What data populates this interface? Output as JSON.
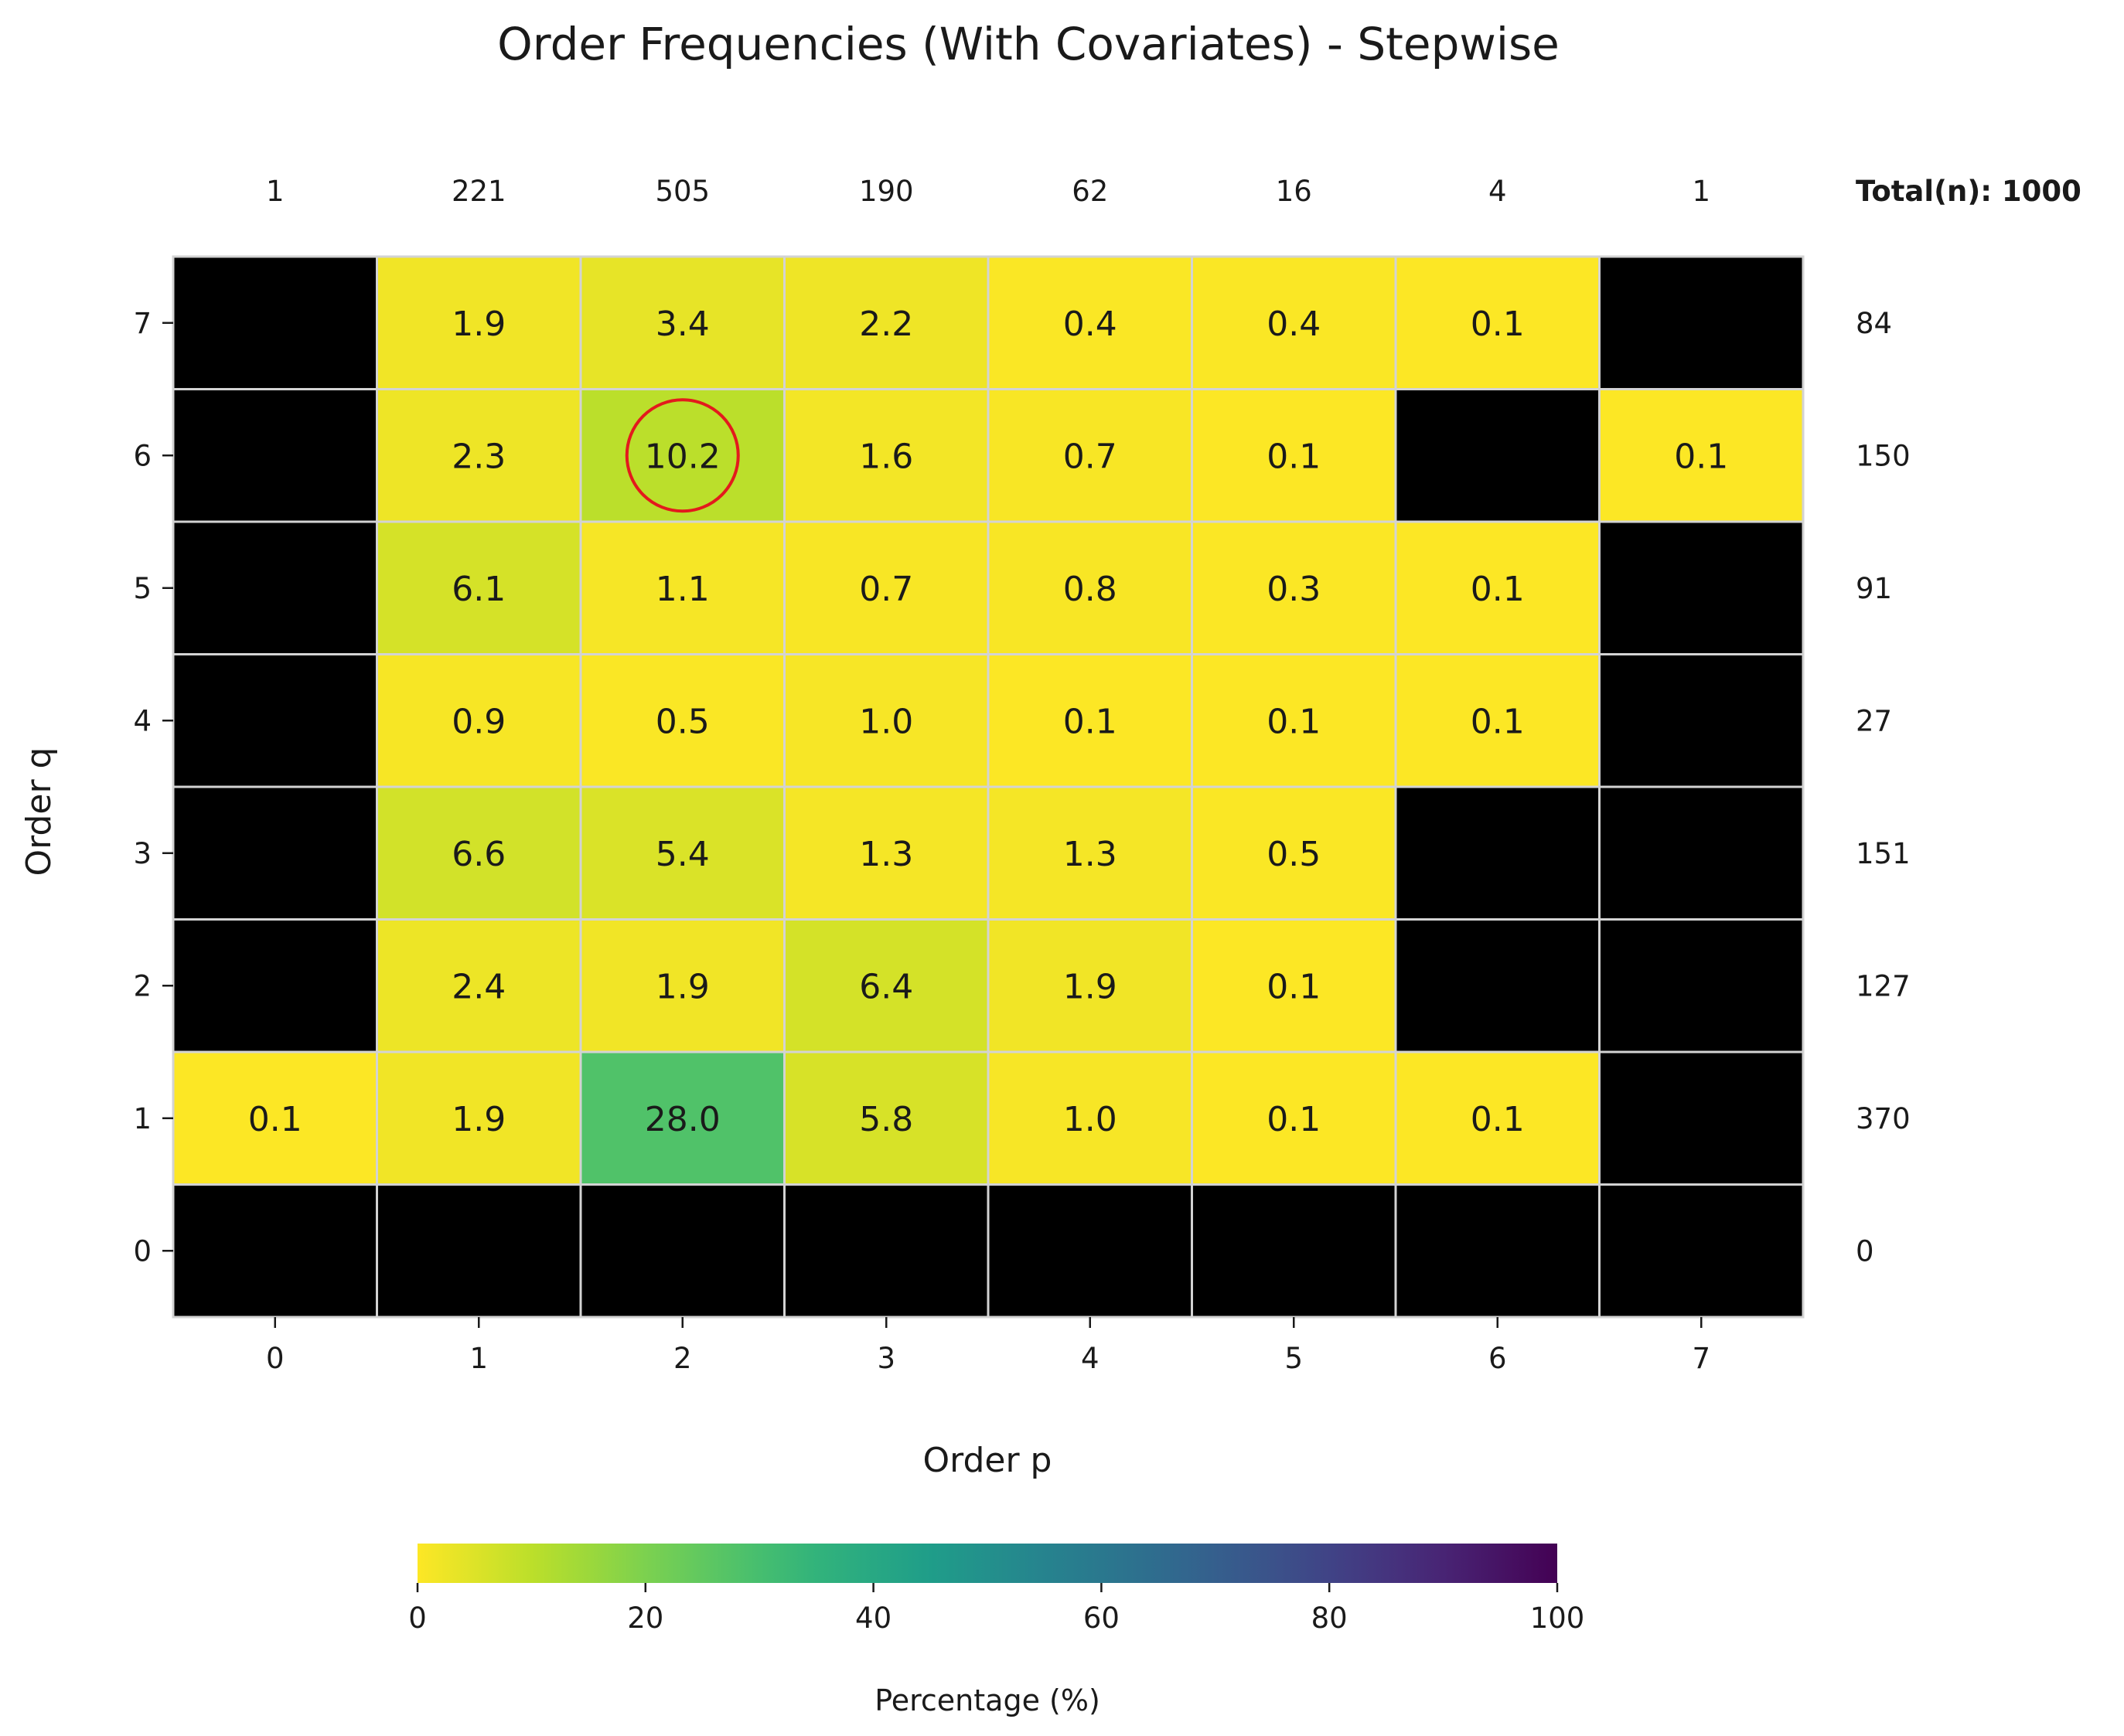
{
  "chart_data": {
    "type": "heatmap",
    "title": "Order Frequencies (With Covariates) - Stepwise",
    "xlabel": "Order p",
    "ylabel": "Order q",
    "x": [
      "0",
      "1",
      "2",
      "3",
      "4",
      "5",
      "6",
      "7"
    ],
    "y": [
      "7",
      "6",
      "5",
      "4",
      "3",
      "2",
      "1",
      "0"
    ],
    "values": [
      [
        null,
        1.9,
        3.4,
        2.2,
        0.4,
        0.4,
        0.1,
        null
      ],
      [
        null,
        2.3,
        10.2,
        1.6,
        0.7,
        0.1,
        null,
        0.1
      ],
      [
        null,
        6.1,
        1.1,
        0.7,
        0.8,
        0.3,
        0.1,
        null
      ],
      [
        null,
        0.9,
        0.5,
        1.0,
        0.1,
        0.1,
        0.1,
        null
      ],
      [
        null,
        6.6,
        5.4,
        1.3,
        1.3,
        0.5,
        null,
        null
      ],
      [
        null,
        2.4,
        1.9,
        6.4,
        1.9,
        0.1,
        null,
        null
      ],
      [
        0.1,
        1.9,
        28.0,
        5.8,
        1.0,
        0.1,
        0.1,
        null
      ],
      [
        null,
        null,
        null,
        null,
        null,
        null,
        null,
        null
      ]
    ],
    "value_labels": [
      [
        "",
        "1.9",
        "3.4",
        "2.2",
        "0.4",
        "0.4",
        "0.1",
        ""
      ],
      [
        "",
        "2.3",
        "10.2",
        "1.6",
        "0.7",
        "0.1",
        "",
        "0.1"
      ],
      [
        "",
        "6.1",
        "1.1",
        "0.7",
        "0.8",
        "0.3",
        "0.1",
        ""
      ],
      [
        "",
        "0.9",
        "0.5",
        "1.0",
        "0.1",
        "0.1",
        "0.1",
        ""
      ],
      [
        "",
        "6.6",
        "5.4",
        "1.3",
        "1.3",
        "0.5",
        "",
        ""
      ],
      [
        "",
        "2.4",
        "1.9",
        "6.4",
        "1.9",
        "0.1",
        "",
        ""
      ],
      [
        "0.1",
        "1.9",
        "28.0",
        "5.8",
        "1.0",
        "0.1",
        "0.1",
        ""
      ],
      [
        "",
        "",
        "",
        "",
        "",
        "",
        "",
        ""
      ]
    ],
    "column_totals": [
      "1",
      "221",
      "505",
      "190",
      "62",
      "16",
      "4",
      "1"
    ],
    "row_totals": [
      "84",
      "150",
      "91",
      "27",
      "151",
      "127",
      "370",
      "0"
    ],
    "total_label": "Total(n): 1000",
    "highlight": {
      "p": "2",
      "q": "6"
    },
    "colorbar": {
      "label": "Percentage (%)",
      "ticks": [
        "0",
        "20",
        "40",
        "60",
        "80",
        "100"
      ],
      "range": [
        0,
        100
      ],
      "colormap": "viridis_r",
      "orientation": "horizontal"
    },
    "colors": {
      "empty_cell": "#000000",
      "cell_border": "#d3d3d3",
      "highlight_ring": "#e31a1c"
    }
  }
}
